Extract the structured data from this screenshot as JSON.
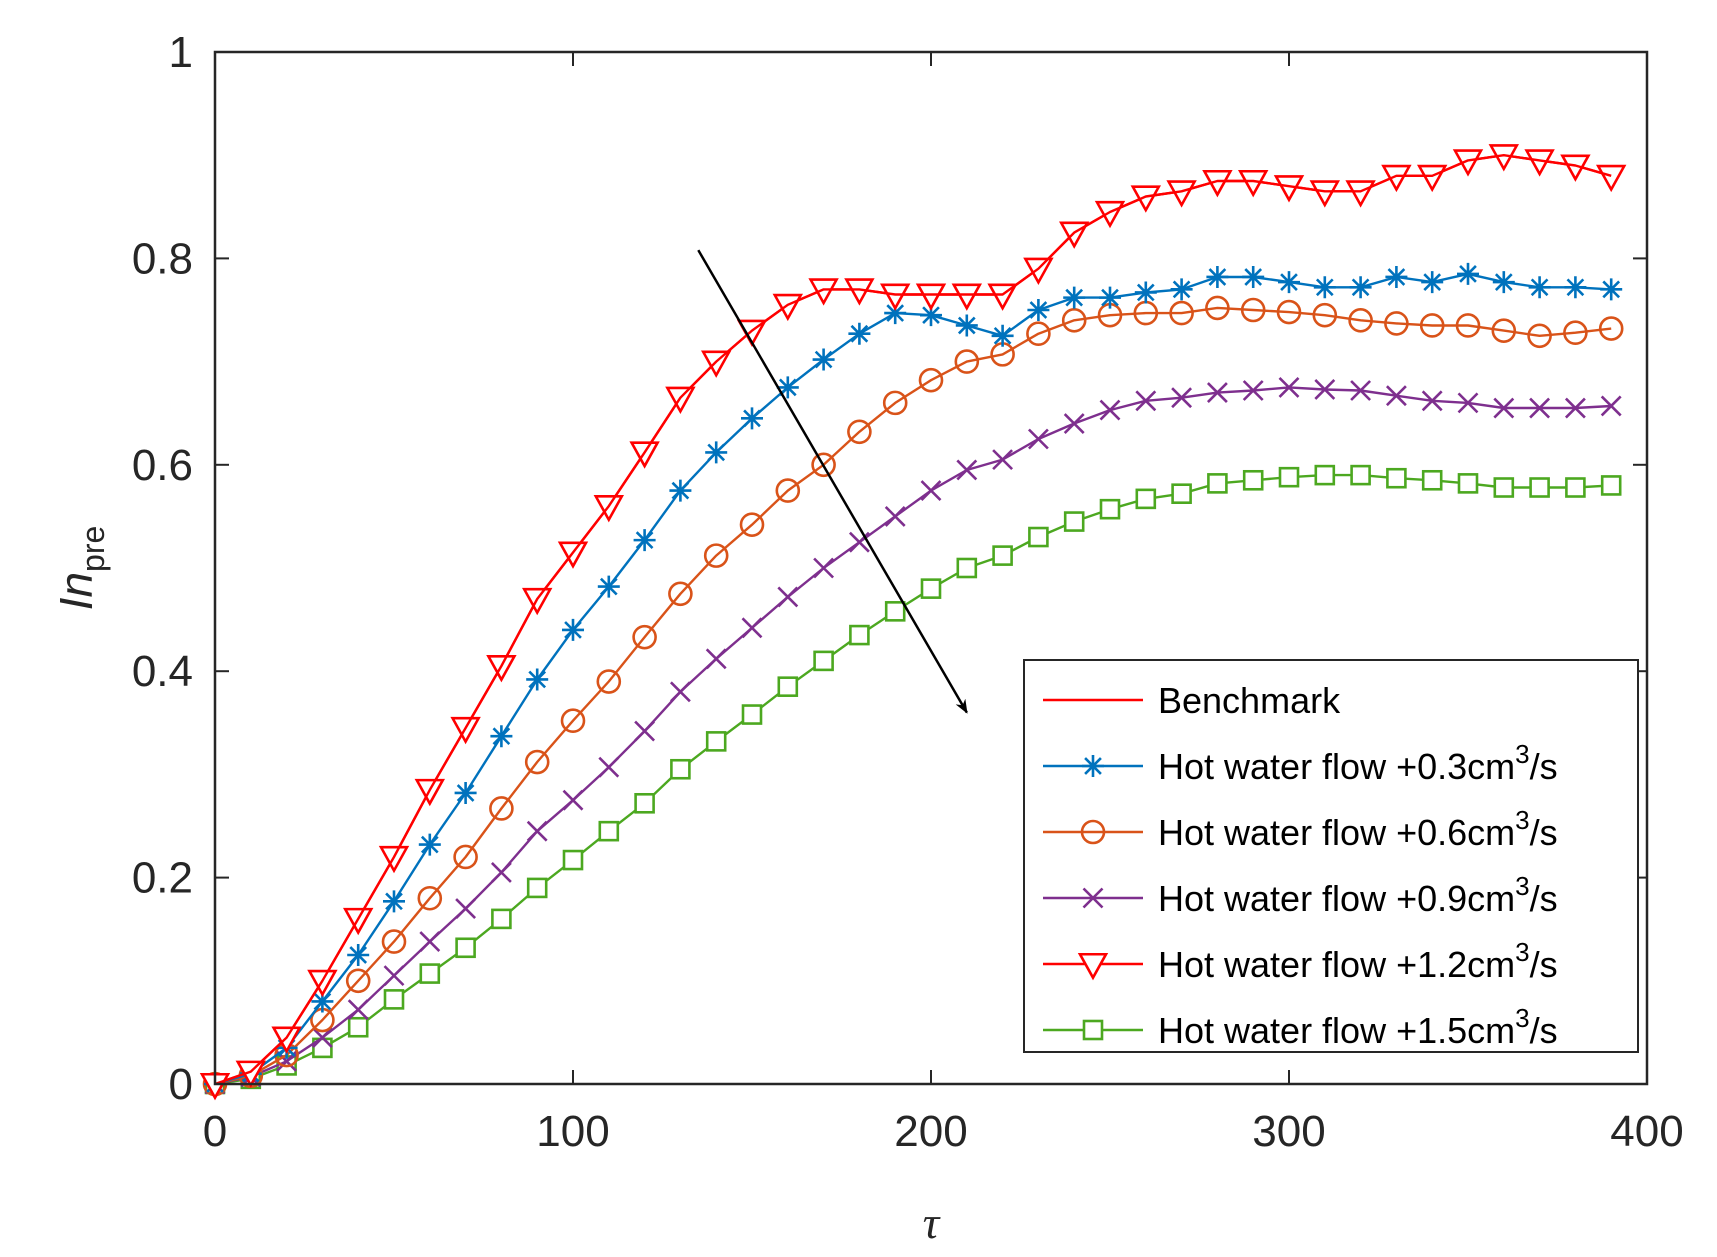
{
  "chart_data": {
    "type": "line",
    "xlabel": "τ",
    "ylabel": {
      "main": "In",
      "sub": "pre"
    },
    "xlim": [
      0,
      400
    ],
    "ylim": [
      0,
      1
    ],
    "xticks": [
      0,
      100,
      200,
      300,
      400
    ],
    "yticks": [
      0,
      0.2,
      0.4,
      0.6,
      0.8,
      1
    ],
    "ytick_labels": [
      "0",
      "0.2",
      "0.4",
      "0.6",
      "0.8",
      "1"
    ],
    "x": [
      0,
      10,
      20,
      30,
      40,
      50,
      60,
      70,
      80,
      90,
      100,
      110,
      120,
      130,
      140,
      150,
      160,
      170,
      180,
      190,
      200,
      210,
      220,
      230,
      240,
      250,
      260,
      270,
      280,
      290,
      300,
      310,
      320,
      330,
      340,
      350,
      360,
      370,
      380,
      390
    ],
    "series": [
      {
        "name": "Benchmark",
        "color": "#ff0000",
        "marker": "none",
        "legend_main": "Benchmark",
        "legend_sup": "",
        "legend_tail": "",
        "values": [
          0,
          0.012,
          0.045,
          0.1,
          0.16,
          0.22,
          0.285,
          0.345,
          0.405,
          0.47,
          0.515,
          0.56,
          0.612,
          0.665,
          0.7,
          0.73,
          0.755,
          0.77,
          0.77,
          0.765,
          0.765,
          0.765,
          0.765,
          0.79,
          0.825,
          0.845,
          0.86,
          0.865,
          0.875,
          0.875,
          0.87,
          0.865,
          0.865,
          0.88,
          0.88,
          0.895,
          0.9,
          0.895,
          0.89,
          0.88
        ]
      },
      {
        "name": "Hot water flow +0.3cm3/s",
        "color": "#0072bd",
        "marker": "star",
        "legend_main": "Hot water flow +0.3cm",
        "legend_sup": "3",
        "legend_tail": "/s",
        "values": [
          0,
          0.01,
          0.035,
          0.08,
          0.125,
          0.177,
          0.232,
          0.282,
          0.337,
          0.392,
          0.44,
          0.482,
          0.527,
          0.575,
          0.612,
          0.645,
          0.675,
          0.702,
          0.727,
          0.747,
          0.745,
          0.735,
          0.725,
          0.75,
          0.762,
          0.762,
          0.767,
          0.77,
          0.782,
          0.782,
          0.777,
          0.772,
          0.772,
          0.782,
          0.777,
          0.785,
          0.777,
          0.772,
          0.772,
          0.77
        ]
      },
      {
        "name": "Hot water flow +0.6cm3/s",
        "color": "#d95319",
        "marker": "circle",
        "legend_main": "Hot water flow +0.6cm",
        "legend_sup": "3",
        "legend_tail": "/s",
        "values": [
          0,
          0.008,
          0.028,
          0.062,
          0.1,
          0.138,
          0.18,
          0.22,
          0.267,
          0.312,
          0.352,
          0.39,
          0.433,
          0.475,
          0.512,
          0.542,
          0.575,
          0.6,
          0.632,
          0.66,
          0.682,
          0.7,
          0.707,
          0.727,
          0.74,
          0.745,
          0.747,
          0.747,
          0.752,
          0.75,
          0.748,
          0.745,
          0.74,
          0.737,
          0.735,
          0.735,
          0.73,
          0.725,
          0.728,
          0.732
        ]
      },
      {
        "name": "Hot water flow +0.9cm3/s",
        "color": "#7e2f8e",
        "marker": "x",
        "legend_main": "Hot water flow +0.9cm",
        "legend_sup": "3",
        "legend_tail": "/s",
        "values": [
          0,
          0.007,
          0.022,
          0.045,
          0.072,
          0.105,
          0.138,
          0.17,
          0.205,
          0.245,
          0.275,
          0.307,
          0.342,
          0.38,
          0.412,
          0.442,
          0.472,
          0.5,
          0.525,
          0.55,
          0.575,
          0.595,
          0.605,
          0.625,
          0.64,
          0.653,
          0.662,
          0.665,
          0.67,
          0.672,
          0.675,
          0.673,
          0.672,
          0.667,
          0.662,
          0.66,
          0.655,
          0.655,
          0.655,
          0.657
        ]
      },
      {
        "name": "Hot water flow +1.2cm3/s",
        "color": "#ff0000",
        "marker": "triangle-down",
        "legend_main": "Hot water flow +1.2cm",
        "legend_sup": "3",
        "legend_tail": "/s",
        "values": [
          0,
          0.012,
          0.045,
          0.1,
          0.16,
          0.22,
          0.285,
          0.345,
          0.405,
          0.47,
          0.515,
          0.56,
          0.612,
          0.665,
          0.7,
          0.73,
          0.755,
          0.77,
          0.77,
          0.765,
          0.765,
          0.765,
          0.765,
          0.79,
          0.825,
          0.845,
          0.86,
          0.865,
          0.875,
          0.875,
          0.87,
          0.865,
          0.865,
          0.88,
          0.88,
          0.895,
          0.9,
          0.895,
          0.89,
          0.88
        ]
      },
      {
        "name": "Hot water flow +1.5cm3/s",
        "color": "#4ca820",
        "marker": "square",
        "legend_main": "Hot water flow +1.5cm",
        "legend_sup": "3",
        "legend_tail": "/s",
        "values": [
          0,
          0.005,
          0.018,
          0.035,
          0.055,
          0.082,
          0.107,
          0.132,
          0.16,
          0.19,
          0.217,
          0.245,
          0.272,
          0.305,
          0.332,
          0.358,
          0.385,
          0.41,
          0.435,
          0.458,
          0.48,
          0.5,
          0.512,
          0.53,
          0.545,
          0.557,
          0.567,
          0.572,
          0.582,
          0.585,
          0.588,
          0.59,
          0.59,
          0.587,
          0.585,
          0.582,
          0.578,
          0.578,
          0.578,
          0.58
        ]
      }
    ],
    "legend_position": "bottom-right",
    "annotation": {
      "type": "arrow",
      "from": [
        135,
        0.808
      ],
      "to": [
        210,
        0.36
      ],
      "meaning": "direction of increasing hot water flow"
    }
  }
}
